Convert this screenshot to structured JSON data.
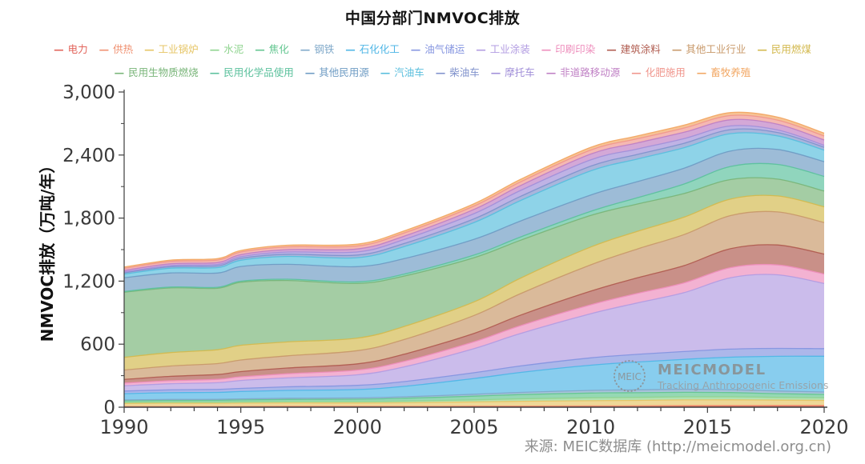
{
  "title": "中国分部门NMVOC排放",
  "source": "来源: MEIC数据库 (http://meicmodel.org.cn)",
  "watermark": {
    "logo_text": "MEIC",
    "name": "MEICMODEL",
    "tagline": "Tracking Anthropogenic Emissions"
  },
  "chart_data": {
    "type": "area",
    "stacked": true,
    "smooth": true,
    "grid": false,
    "legend_position": "top",
    "legend_row_break": 13,
    "title": "中国分部门NMVOC排放",
    "xlabel": "",
    "ylabel": "NMVOC排放（万吨/年）",
    "xlim": [
      1990,
      2020
    ],
    "ylim": [
      0,
      3000
    ],
    "x_major_ticks": [
      1990,
      1995,
      2000,
      2005,
      2010,
      2015,
      2020
    ],
    "y_ticks": [
      {
        "v": 0,
        "label": "0"
      },
      {
        "v": 600,
        "label": "600"
      },
      {
        "v": 1200,
        "label": "1,200"
      },
      {
        "v": 1800,
        "label": "1,800"
      },
      {
        "v": 2400,
        "label": "2,400"
      },
      {
        "v": 3000,
        "label": "3,000"
      }
    ],
    "y_minor_ticks": [
      300,
      900,
      1500,
      2100,
      2700
    ],
    "x": [
      1990,
      1992,
      1994,
      1995,
      1997,
      2000,
      2002,
      2005,
      2007,
      2010,
      2012,
      2014,
      2016,
      2018,
      2020
    ],
    "series": [
      {
        "name": "电力",
        "color": "#e2635a",
        "values": [
          3,
          3,
          3,
          3,
          4,
          4,
          4,
          5,
          5,
          6,
          6,
          7,
          7,
          7,
          7
        ]
      },
      {
        "name": "供热",
        "color": "#f09070",
        "values": [
          3,
          3,
          3,
          3,
          4,
          4,
          4,
          5,
          6,
          6,
          7,
          8,
          9,
          10,
          10
        ]
      },
      {
        "name": "工业锅炉",
        "color": "#e6c565",
        "values": [
          30,
          32,
          31,
          33,
          33,
          32,
          35,
          40,
          45,
          50,
          52,
          54,
          54,
          50,
          48
        ]
      },
      {
        "name": "水泥",
        "color": "#8fd48f",
        "values": [
          10,
          11,
          12,
          12,
          13,
          14,
          16,
          20,
          24,
          28,
          29,
          30,
          29,
          27,
          25
        ]
      },
      {
        "name": "焦化",
        "color": "#63c690",
        "values": [
          15,
          16,
          17,
          18,
          20,
          22,
          26,
          35,
          40,
          45,
          44,
          43,
          40,
          35,
          32
        ]
      },
      {
        "name": "钢铁",
        "color": "#7fa8c9",
        "values": [
          8,
          9,
          9,
          10,
          11,
          12,
          14,
          18,
          21,
          25,
          27,
          28,
          27,
          25,
          23
        ]
      },
      {
        "name": "石化化工",
        "color": "#4fb6e6",
        "values": [
          60,
          64,
          66,
          70,
          75,
          80,
          100,
          150,
          190,
          240,
          265,
          285,
          310,
          330,
          340
        ]
      },
      {
        "name": "油气储运",
        "color": "#8595e0",
        "values": [
          25,
          27,
          28,
          30,
          34,
          40,
          45,
          55,
          62,
          70,
          73,
          75,
          77,
          76,
          72
        ]
      },
      {
        "name": "工业涂装",
        "color": "#b29ce2",
        "values": [
          50,
          58,
          64,
          75,
          85,
          100,
          140,
          230,
          310,
          420,
          490,
          560,
          680,
          700,
          620
        ]
      },
      {
        "name": "印刷印染",
        "color": "#ee8ebc",
        "values": [
          25,
          29,
          32,
          35,
          39,
          45,
          52,
          65,
          74,
          85,
          90,
          93,
          96,
          94,
          90
        ]
      },
      {
        "name": "建筑涂料",
        "color": "#b05c50",
        "values": [
          35,
          42,
          46,
          50,
          55,
          60,
          68,
          80,
          100,
          130,
          148,
          165,
          180,
          190,
          190
        ]
      },
      {
        "name": "其他工业行业",
        "color": "#c8996a",
        "values": [
          90,
          98,
          104,
          110,
          116,
          125,
          140,
          170,
          205,
          250,
          275,
          295,
          315,
          315,
          300
        ]
      },
      {
        "name": "民用燃煤",
        "color": "#d3b94e",
        "values": [
          120,
          128,
          132,
          140,
          132,
          120,
          124,
          130,
          148,
          170,
          168,
          166,
          158,
          152,
          150
        ]
      },
      {
        "name": "民用生物质燃烧",
        "color": "#79b579",
        "values": [
          620,
          615,
          585,
          600,
          585,
          520,
          480,
          420,
          360,
          300,
          260,
          225,
          185,
          160,
          150
        ]
      },
      {
        "name": "民用化学品使用",
        "color": "#5cc19d",
        "values": [
          8,
          9,
          9,
          10,
          12,
          15,
          19,
          25,
          31,
          40,
          60,
          90,
          125,
          140,
          140
        ]
      },
      {
        "name": "其他民用源",
        "color": "#6f9cc4",
        "values": [
          130,
          134,
          136,
          140,
          142,
          145,
          147,
          150,
          152,
          155,
          153,
          151,
          147,
          142,
          140
        ]
      },
      {
        "name": "汽油车",
        "color": "#58bedd",
        "values": [
          35,
          45,
          52,
          60,
          75,
          85,
          115,
          160,
          195,
          230,
          215,
          195,
          165,
          130,
          110
        ]
      },
      {
        "name": "柴油车",
        "color": "#8092cc",
        "values": [
          12,
          14,
          16,
          18,
          21,
          25,
          29,
          35,
          40,
          45,
          44,
          42,
          38,
          32,
          28
        ]
      },
      {
        "name": "摩托车",
        "color": "#a18fd9",
        "values": [
          8,
          11,
          13,
          15,
          21,
          30,
          38,
          50,
          56,
          60,
          52,
          45,
          35,
          24,
          18
        ]
      },
      {
        "name": "非道路移动源",
        "color": "#bf7fc4",
        "values": [
          15,
          17,
          19,
          20,
          23,
          28,
          32,
          40,
          47,
          55,
          58,
          60,
          59,
          55,
          50
        ]
      },
      {
        "name": "化肥施用",
        "color": "#f0968d",
        "values": [
          20,
          22,
          23,
          25,
          26,
          28,
          30,
          32,
          35,
          38,
          39,
          40,
          40,
          39,
          38
        ]
      },
      {
        "name": "畜牧养殖",
        "color": "#f2a763",
        "values": [
          12,
          13,
          14,
          15,
          16,
          18,
          20,
          22,
          24,
          26,
          27,
          28,
          28,
          28,
          27
        ]
      }
    ]
  }
}
